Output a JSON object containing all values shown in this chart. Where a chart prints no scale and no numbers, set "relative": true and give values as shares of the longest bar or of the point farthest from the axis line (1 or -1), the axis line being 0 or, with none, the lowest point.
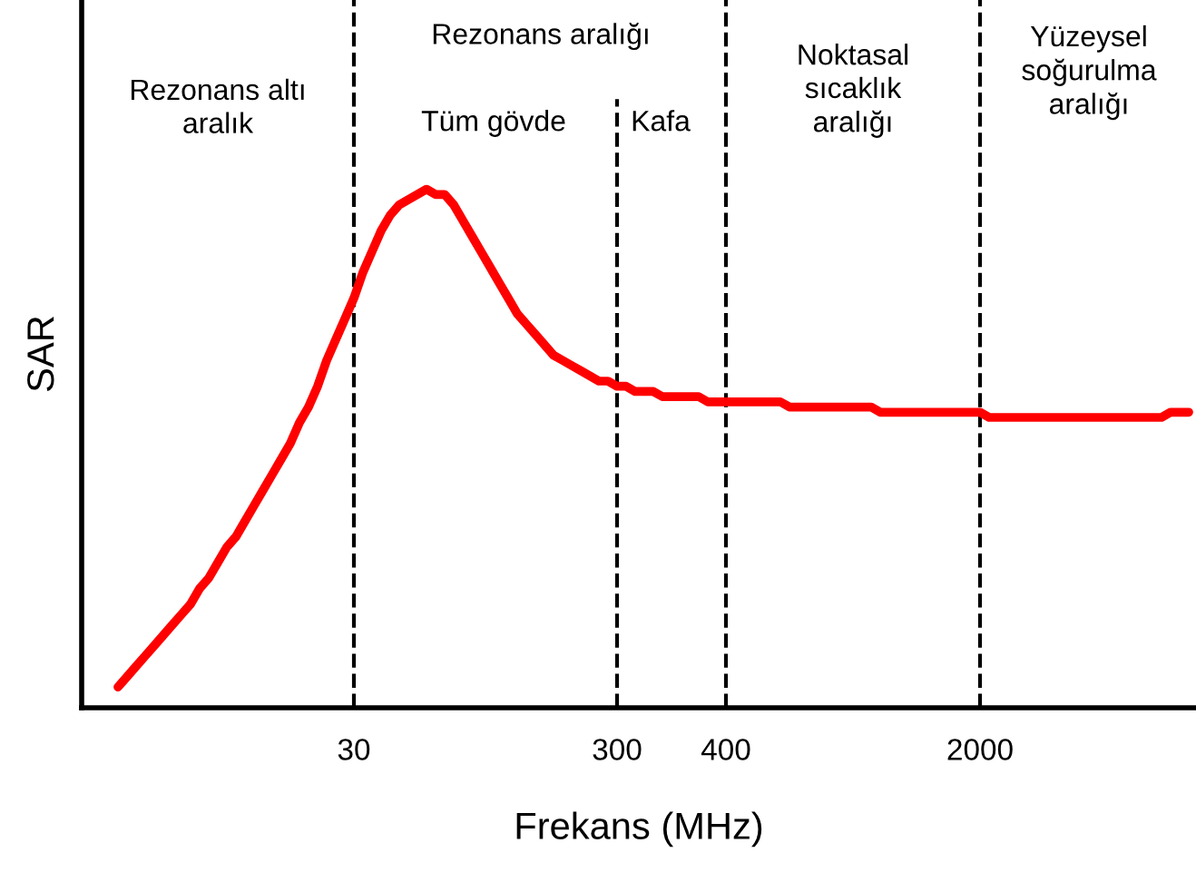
{
  "chart_data": {
    "type": "line",
    "relative": true,
    "xlabel": "Frekans (MHz)",
    "ylabel": "SAR",
    "grid": false,
    "legend": false,
    "marker": "none",
    "line_style": "solid",
    "categories": [
      null,
      null,
      null,
      null,
      null,
      null,
      null,
      null,
      null,
      null,
      null,
      null,
      null,
      null,
      null,
      null,
      null,
      null,
      null,
      null,
      null,
      null,
      null,
      null,
      null,
      null,
      null,
      null,
      null,
      null,
      "30",
      null,
      null,
      null,
      null,
      null,
      null,
      null,
      null,
      null,
      null,
      null,
      null,
      null,
      null,
      null,
      null,
      null,
      null,
      null,
      null,
      null,
      null,
      null,
      null,
      null,
      null,
      null,
      null,
      "300",
      null,
      null,
      null,
      null,
      null,
      null,
      null,
      null,
      null,
      null,
      null,
      "400",
      null,
      null,
      null,
      null,
      null,
      null,
      null,
      null,
      null,
      null,
      null,
      null,
      null,
      null,
      null,
      null,
      null,
      null,
      null,
      null,
      null,
      null,
      null,
      null,
      null,
      null,
      null,
      "2000",
      null,
      null,
      null,
      null,
      null,
      null,
      null,
      null,
      null,
      null,
      null,
      null,
      null,
      null,
      null,
      null,
      null,
      null,
      null,
      null,
      null,
      null,
      null
    ],
    "series": [
      {
        "color": "#ff0000",
        "values": [
          null,
          null,
          null,
          null,
          0.04,
          0.06,
          0.08,
          0.1,
          0.12,
          0.14,
          0.16,
          0.18,
          0.2,
          0.23,
          0.25,
          0.28,
          0.31,
          0.33,
          0.36,
          0.39,
          0.42,
          0.45,
          0.48,
          0.51,
          0.55,
          0.58,
          0.62,
          0.67,
          0.71,
          0.75,
          0.79,
          0.84,
          0.88,
          0.92,
          0.95,
          0.97,
          0.98,
          0.99,
          1,
          0.99,
          0.99,
          0.97,
          0.94,
          0.91,
          0.88,
          0.85,
          0.82,
          0.79,
          0.76,
          0.74,
          0.72,
          0.7,
          0.68,
          0.67,
          0.66,
          0.65,
          0.64,
          0.63,
          0.63,
          0.62,
          0.62,
          0.61,
          0.61,
          0.61,
          0.6,
          0.6,
          0.6,
          0.6,
          0.6,
          0.59,
          0.59,
          0.59,
          0.59,
          0.59,
          0.59,
          0.59,
          0.59,
          0.59,
          0.58,
          0.58,
          0.58,
          0.58,
          0.58,
          0.58,
          0.58,
          0.58,
          0.58,
          0.58,
          0.57,
          0.57,
          0.57,
          0.57,
          0.57,
          0.57,
          0.57,
          0.57,
          0.57,
          0.57,
          0.57,
          0.57,
          0.56,
          0.56,
          0.56,
          0.56,
          0.56,
          0.56,
          0.56,
          0.56,
          0.56,
          0.56,
          0.56,
          0.56,
          0.56,
          0.56,
          0.56,
          0.56,
          0.56,
          0.56,
          0.56,
          0.56,
          0.57,
          0.57,
          0.57
        ]
      }
    ],
    "ref_lines": [
      {
        "axis": "x",
        "value": "30",
        "color": "#000000",
        "line_style": "dashed"
      },
      {
        "axis": "x",
        "value": "300",
        "color": "#000000",
        "line_style": "dashed"
      },
      {
        "axis": "x",
        "value": "400",
        "color": "#000000",
        "line_style": "dashed"
      },
      {
        "axis": "x",
        "value": "2000",
        "color": "#000000",
        "line_style": "dashed"
      }
    ],
    "annotations": [
      "Rezonans altı\naralık",
      "Rezonans aralığı",
      "Tüm gövde",
      "Kafa",
      "Noktasal\nsıcaklık\naralığı",
      "Yüzeysel\nsoğurulma\naralığı"
    ]
  }
}
